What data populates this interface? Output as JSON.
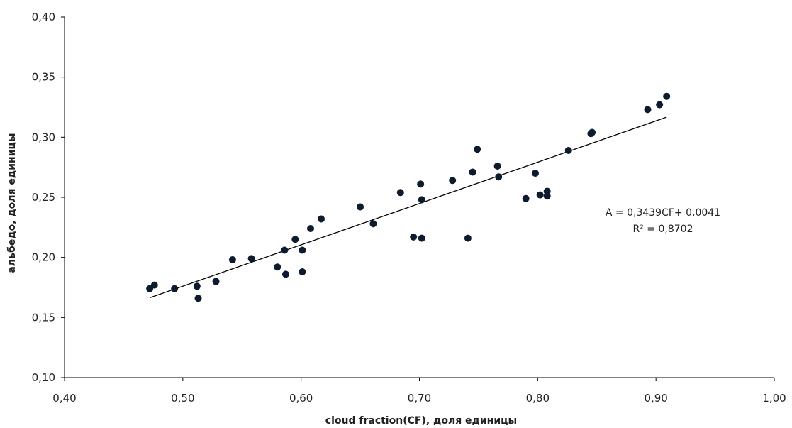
{
  "chart_data": {
    "type": "scatter",
    "xlabel": "cloud fraction(CF), доля единицы",
    "ylabel": "альбедо, доля единицы",
    "xlim": [
      0.4,
      1.0
    ],
    "ylim": [
      0.1,
      0.4
    ],
    "x_ticks": [
      "0,40",
      "0,50",
      "0,60",
      "0,70",
      "0,80",
      "0,90",
      "1,00"
    ],
    "y_ticks": [
      "0,40",
      "0,35",
      "0,30",
      "0,25",
      "0,20",
      "0,15",
      "0,10"
    ],
    "grid": false,
    "points": [
      {
        "x": 0.472,
        "y": 0.174
      },
      {
        "x": 0.476,
        "y": 0.177
      },
      {
        "x": 0.493,
        "y": 0.174
      },
      {
        "x": 0.512,
        "y": 0.176
      },
      {
        "x": 0.513,
        "y": 0.166
      },
      {
        "x": 0.528,
        "y": 0.18
      },
      {
        "x": 0.542,
        "y": 0.198
      },
      {
        "x": 0.558,
        "y": 0.199
      },
      {
        "x": 0.58,
        "y": 0.192
      },
      {
        "x": 0.586,
        "y": 0.206
      },
      {
        "x": 0.587,
        "y": 0.186
      },
      {
        "x": 0.595,
        "y": 0.215
      },
      {
        "x": 0.601,
        "y": 0.206
      },
      {
        "x": 0.601,
        "y": 0.188
      },
      {
        "x": 0.608,
        "y": 0.224
      },
      {
        "x": 0.617,
        "y": 0.232
      },
      {
        "x": 0.65,
        "y": 0.242
      },
      {
        "x": 0.661,
        "y": 0.228
      },
      {
        "x": 0.684,
        "y": 0.254
      },
      {
        "x": 0.695,
        "y": 0.217
      },
      {
        "x": 0.701,
        "y": 0.261
      },
      {
        "x": 0.702,
        "y": 0.248
      },
      {
        "x": 0.702,
        "y": 0.216
      },
      {
        "x": 0.728,
        "y": 0.264
      },
      {
        "x": 0.741,
        "y": 0.216
      },
      {
        "x": 0.745,
        "y": 0.271
      },
      {
        "x": 0.749,
        "y": 0.29
      },
      {
        "x": 0.766,
        "y": 0.276
      },
      {
        "x": 0.767,
        "y": 0.267
      },
      {
        "x": 0.79,
        "y": 0.249
      },
      {
        "x": 0.798,
        "y": 0.27
      },
      {
        "x": 0.802,
        "y": 0.252
      },
      {
        "x": 0.808,
        "y": 0.255
      },
      {
        "x": 0.808,
        "y": 0.251
      },
      {
        "x": 0.826,
        "y": 0.289
      },
      {
        "x": 0.845,
        "y": 0.303
      },
      {
        "x": 0.846,
        "y": 0.304
      },
      {
        "x": 0.893,
        "y": 0.323
      },
      {
        "x": 0.903,
        "y": 0.327
      },
      {
        "x": 0.909,
        "y": 0.334
      }
    ],
    "trendline": {
      "slope": 0.3439,
      "intercept": 0.0041,
      "x_start": 0.472,
      "x_end": 0.909
    },
    "annotations": [
      "A = 0,3439CF+ 0,0041",
      "R² = 0,8702"
    ],
    "marker_color": "#0d1b2e",
    "line_color": "#000000",
    "axis_color": "#000000"
  }
}
